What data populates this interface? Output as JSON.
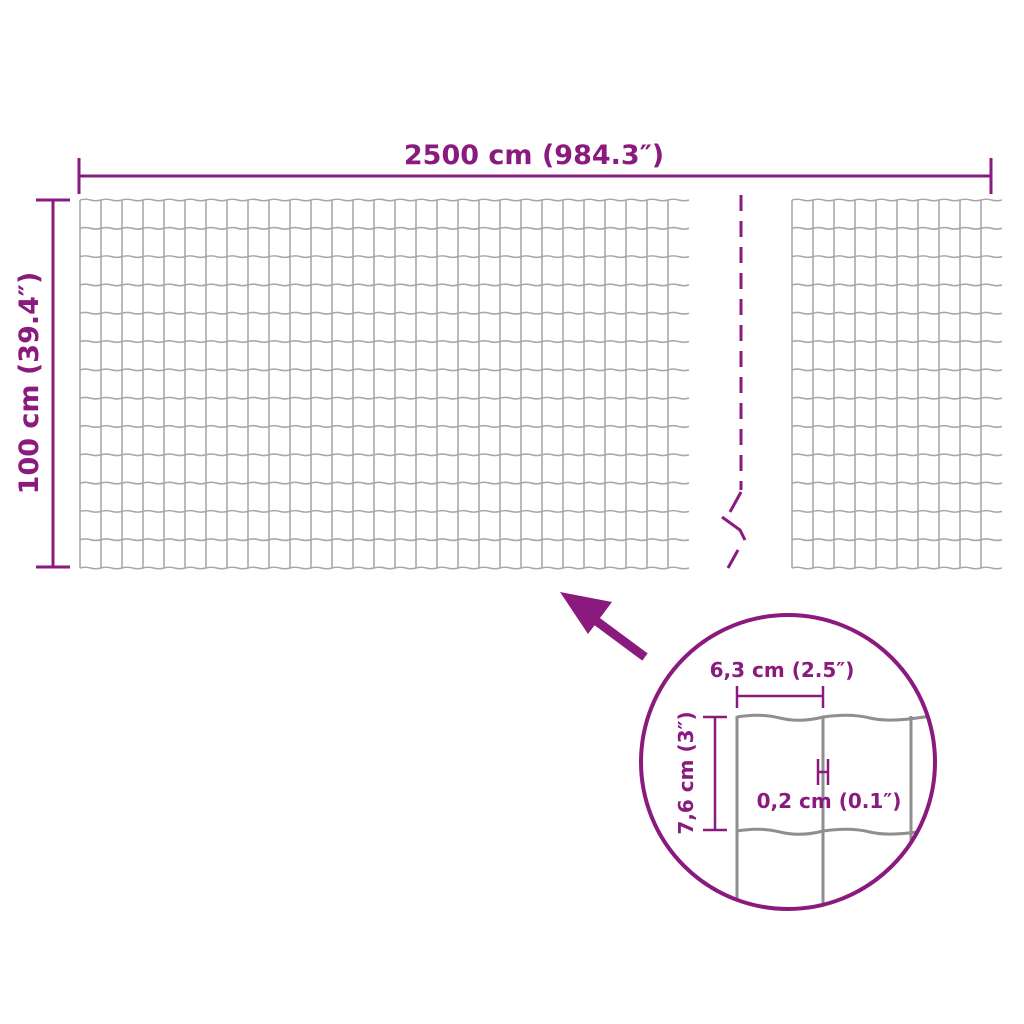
{
  "colors": {
    "accent": "#8a1a7e",
    "wire": "#a8a8a8"
  },
  "dimensions": {
    "length": "2500 cm (984.3″)",
    "height": "100 cm (39.4″)",
    "mesh_width": "6,3 cm (2.5″)",
    "mesh_height": "7,6 cm (3″)",
    "wire_diameter": "0,2 cm (0.1″)"
  }
}
